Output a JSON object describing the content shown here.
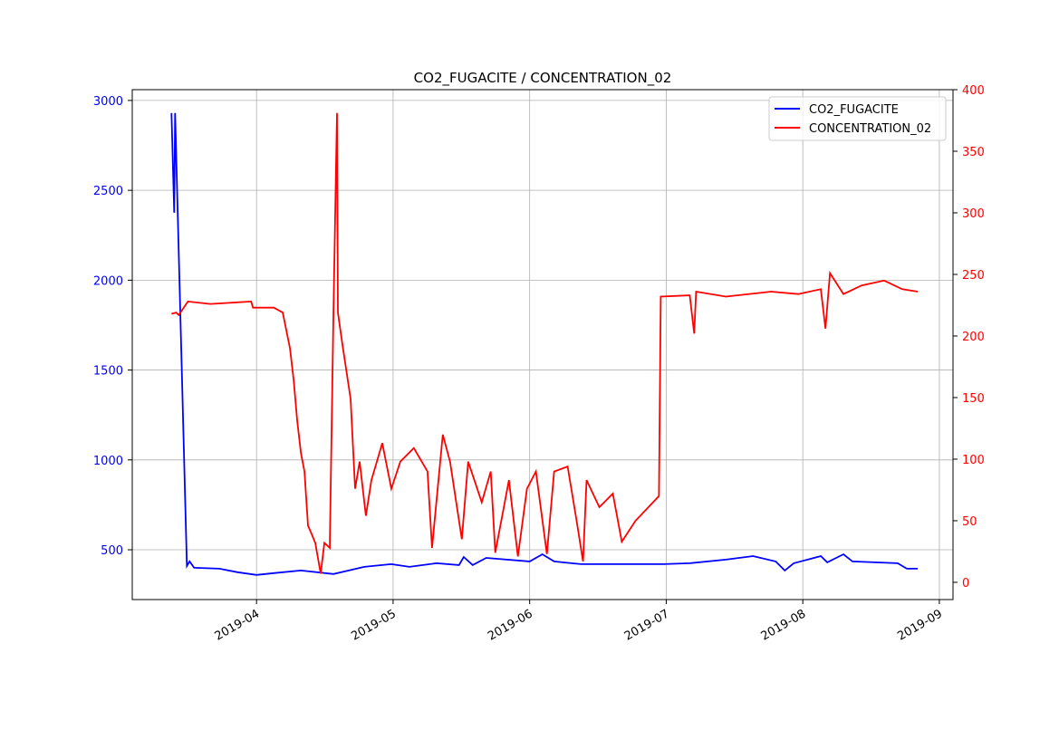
{
  "chart_data": {
    "type": "line",
    "title": "CO2_FUGACITE / CONCENTRATION_02",
    "xlim": [
      3.09,
      9.1
    ],
    "xticks": [
      {
        "value": 4,
        "label": "2019-04"
      },
      {
        "value": 5,
        "label": "2019-05"
      },
      {
        "value": 6,
        "label": "2019-06"
      },
      {
        "value": 7,
        "label": "2019-07"
      },
      {
        "value": 8,
        "label": "2019-08"
      },
      {
        "value": 9,
        "label": "2019-09"
      }
    ],
    "ylim": [
      223,
      3060
    ],
    "yticks": [
      500,
      1000,
      1500,
      2000,
      2500,
      3000
    ],
    "y2lim": [
      -14,
      400
    ],
    "y2ticks": [
      0,
      50,
      100,
      150,
      200,
      250,
      300,
      350,
      400
    ],
    "grid": true,
    "legend": "upper right",
    "series": [
      {
        "name": "CO2_FUGACITE",
        "color": "#0000ff",
        "axis": "y",
        "x": [
          3.377,
          3.397,
          3.404,
          3.49,
          3.51,
          3.543,
          3.728,
          3.861,
          4.0,
          4.126,
          4.325,
          4.563,
          4.788,
          4.987,
          5.119,
          5.318,
          5.483,
          5.517,
          5.583,
          5.682,
          6.0,
          6.093,
          6.179,
          6.377,
          6.642,
          6.98,
          7.172,
          7.437,
          7.636,
          7.801,
          7.868,
          7.934,
          8.132,
          8.179,
          8.298,
          8.364,
          8.695,
          8.762,
          8.841
        ],
        "values": [
          2930,
          2375,
          2930,
          410,
          435,
          400,
          395,
          375,
          360,
          370,
          385,
          365,
          405,
          420,
          405,
          425,
          415,
          460,
          415,
          455,
          435,
          475,
          435,
          420,
          420,
          420,
          425,
          445,
          465,
          435,
          385,
          425,
          465,
          430,
          475,
          435,
          425,
          395,
          395
        ]
      },
      {
        "name": "CONCENTRATION_02",
        "color": "#ff0000",
        "axis": "y2",
        "x": [
          3.377,
          3.411,
          3.43,
          3.497,
          3.662,
          3.96,
          3.974,
          4.126,
          4.192,
          4.245,
          4.272,
          4.298,
          4.325,
          4.351,
          4.377,
          4.404,
          4.43,
          4.47,
          4.497,
          4.536,
          4.563,
          4.589,
          4.596,
          4.629,
          4.689,
          4.722,
          4.755,
          4.801,
          4.841,
          4.921,
          4.987,
          5.053,
          5.152,
          5.252,
          5.285,
          5.364,
          5.417,
          5.503,
          5.55,
          5.649,
          5.715,
          5.748,
          5.848,
          5.914,
          5.98,
          6.046,
          6.126,
          6.179,
          6.278,
          6.344,
          6.391,
          6.417,
          6.51,
          6.609,
          6.675,
          6.775,
          6.947,
          6.96,
          7.172,
          7.205,
          7.219,
          7.437,
          7.768,
          7.967,
          8.132,
          8.166,
          8.199,
          8.298,
          8.43,
          8.596,
          8.728,
          8.841
        ],
        "values": [
          218,
          219,
          217,
          228,
          226,
          228,
          223,
          223,
          219,
          190,
          164,
          131,
          105,
          90,
          46,
          39,
          32,
          7,
          32,
          28,
          219,
          381,
          219,
          193,
          149,
          76,
          98,
          54,
          83,
          113,
          76,
          98,
          109,
          90,
          28,
          120,
          98,
          35,
          98,
          65,
          90,
          24,
          83,
          21,
          76,
          90,
          23,
          90,
          94,
          50,
          17,
          83,
          61,
          72,
          33,
          50,
          70,
          232,
          233,
          202,
          236,
          232,
          236,
          234,
          238,
          206,
          251,
          234,
          241,
          245,
          238,
          236
        ]
      }
    ]
  }
}
